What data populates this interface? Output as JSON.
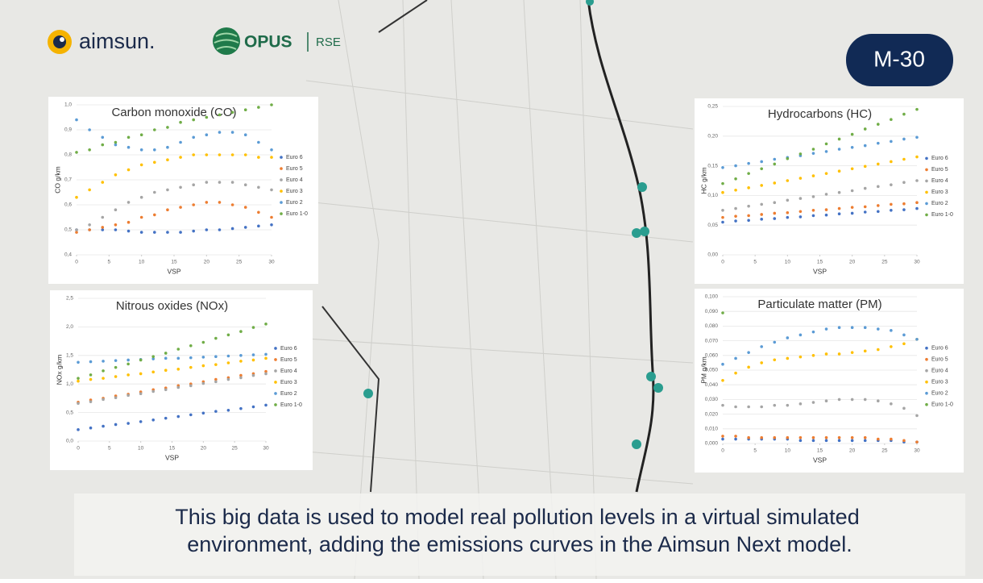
{
  "logos": {
    "aimsun": "aimsun.",
    "opus": "OPUS",
    "rse": "RSE"
  },
  "badge": "M-30",
  "caption": [
    "This big data is used to model real pollution levels in a virtual simulated",
    "environment, adding the emissions curves in the Aimsun Next model."
  ],
  "chart_data": [
    {
      "type": "scatter",
      "title": "Carbon monoxide (CO)",
      "xlabel": "VSP",
      "ylabel": "CO g/km",
      "legend": "right",
      "x": [
        0,
        2,
        4,
        6,
        8,
        10,
        12,
        14,
        16,
        18,
        20,
        22,
        24,
        26,
        28,
        30
      ],
      "xlim": [
        0,
        30
      ],
      "xticks": [
        0,
        5,
        10,
        15,
        20,
        25,
        30
      ],
      "ylim": [
        0.4,
        1.0
      ],
      "yticks": [
        {
          "value": 0.4,
          "label": "0,4"
        },
        {
          "value": 0.5,
          "label": "0,5"
        },
        {
          "value": 0.6,
          "label": "0,6"
        },
        {
          "value": 0.7,
          "label": "0,7"
        },
        {
          "value": 0.8,
          "label": "0,8"
        },
        {
          "value": 0.9,
          "label": "0,9"
        },
        {
          "value": 1.0,
          "label": "1,0"
        }
      ],
      "series": [
        {
          "name": "Euro 6",
          "color": "#4472c4",
          "values": [
            0.5,
            0.5,
            0.5,
            0.5,
            0.495,
            0.49,
            0.49,
            0.49,
            0.49,
            0.495,
            0.5,
            0.5,
            0.505,
            0.51,
            0.515,
            0.52
          ]
        },
        {
          "name": "Euro 5",
          "color": "#ed7d31",
          "values": [
            0.49,
            0.5,
            0.51,
            0.52,
            0.53,
            0.55,
            0.56,
            0.58,
            0.59,
            0.6,
            0.61,
            0.61,
            0.6,
            0.59,
            0.57,
            0.55
          ]
        },
        {
          "name": "Euro 4",
          "color": "#a5a5a5",
          "values": [
            0.5,
            0.52,
            0.55,
            0.58,
            0.61,
            0.63,
            0.65,
            0.66,
            0.67,
            0.68,
            0.69,
            0.69,
            0.69,
            0.68,
            0.67,
            0.66
          ]
        },
        {
          "name": "Euro 3",
          "color": "#ffc000",
          "values": [
            0.63,
            0.66,
            0.69,
            0.72,
            0.74,
            0.76,
            0.77,
            0.78,
            0.79,
            0.8,
            0.8,
            0.8,
            0.8,
            0.8,
            0.79,
            0.79
          ]
        },
        {
          "name": "Euro 2",
          "color": "#5b9bd5",
          "values": [
            0.94,
            0.9,
            0.87,
            0.84,
            0.83,
            0.82,
            0.82,
            0.83,
            0.85,
            0.87,
            0.88,
            0.89,
            0.89,
            0.88,
            0.85,
            0.82
          ]
        },
        {
          "name": "Euro 1-0",
          "color": "#70ad47",
          "values": [
            0.81,
            0.82,
            0.84,
            0.85,
            0.87,
            0.88,
            0.9,
            0.91,
            0.93,
            0.94,
            0.95,
            0.96,
            0.97,
            0.98,
            0.99,
            1.0
          ]
        }
      ]
    },
    {
      "type": "scatter",
      "title": "Hydrocarbons (HC)",
      "xlabel": "VSP",
      "ylabel": "HC g/km",
      "legend": "right",
      "x": [
        0,
        2,
        4,
        6,
        8,
        10,
        12,
        14,
        16,
        18,
        20,
        22,
        24,
        26,
        28,
        30
      ],
      "xlim": [
        0,
        30
      ],
      "xticks": [
        0,
        5,
        10,
        15,
        20,
        25,
        30
      ],
      "ylim": [
        0,
        0.25
      ],
      "yticks": [
        {
          "value": 0,
          "label": "0,00"
        },
        {
          "value": 0.05,
          "label": "0,05"
        },
        {
          "value": 0.1,
          "label": "0,10"
        },
        {
          "value": 0.15,
          "label": "0,15"
        },
        {
          "value": 0.2,
          "label": "0,20"
        },
        {
          "value": 0.25,
          "label": "0,25"
        }
      ],
      "series": [
        {
          "name": "Euro 6",
          "color": "#4472c4",
          "values": [
            0.055,
            0.057,
            0.058,
            0.06,
            0.061,
            0.063,
            0.064,
            0.066,
            0.067,
            0.069,
            0.07,
            0.072,
            0.073,
            0.075,
            0.076,
            0.078
          ]
        },
        {
          "name": "Euro 5",
          "color": "#ed7d31",
          "values": [
            0.063,
            0.065,
            0.066,
            0.068,
            0.07,
            0.071,
            0.073,
            0.075,
            0.076,
            0.078,
            0.08,
            0.081,
            0.083,
            0.085,
            0.086,
            0.088
          ]
        },
        {
          "name": "Euro 4",
          "color": "#a5a5a5",
          "values": [
            0.075,
            0.078,
            0.082,
            0.085,
            0.088,
            0.092,
            0.095,
            0.098,
            0.102,
            0.105,
            0.108,
            0.112,
            0.115,
            0.118,
            0.122,
            0.125
          ]
        },
        {
          "name": "Euro 3",
          "color": "#ffc000",
          "values": [
            0.105,
            0.109,
            0.113,
            0.117,
            0.121,
            0.125,
            0.129,
            0.133,
            0.137,
            0.141,
            0.145,
            0.149,
            0.153,
            0.157,
            0.161,
            0.165
          ]
        },
        {
          "name": "Euro 2",
          "color": "#5b9bd5",
          "values": [
            0.147,
            0.15,
            0.154,
            0.157,
            0.161,
            0.164,
            0.167,
            0.171,
            0.174,
            0.178,
            0.181,
            0.184,
            0.188,
            0.191,
            0.195,
            0.198
          ]
        },
        {
          "name": "Euro 1-0",
          "color": "#70ad47",
          "values": [
            0.12,
            0.128,
            0.137,
            0.145,
            0.153,
            0.162,
            0.17,
            0.178,
            0.187,
            0.195,
            0.203,
            0.212,
            0.22,
            0.228,
            0.237,
            0.245
          ]
        }
      ]
    },
    {
      "type": "scatter",
      "title": "Nitrous oxides (NOx)",
      "xlabel": "VSP",
      "ylabel": "NOx g/km",
      "legend": "right",
      "x": [
        0,
        2,
        4,
        6,
        8,
        10,
        12,
        14,
        16,
        18,
        20,
        22,
        24,
        26,
        28,
        30
      ],
      "xlim": [
        0,
        30
      ],
      "xticks": [
        0,
        5,
        10,
        15,
        20,
        25,
        30
      ],
      "ylim": [
        0,
        2.5
      ],
      "yticks": [
        {
          "value": 0,
          "label": "0,0"
        },
        {
          "value": 0.5,
          "label": "0,5"
        },
        {
          "value": 1.0,
          "label": "1,0"
        },
        {
          "value": 1.5,
          "label": "1,5"
        },
        {
          "value": 2.0,
          "label": "2,0"
        },
        {
          "value": 2.5,
          "label": "2,5"
        }
      ],
      "series": [
        {
          "name": "Euro 6",
          "color": "#4472c4",
          "values": [
            0.2,
            0.23,
            0.26,
            0.29,
            0.31,
            0.34,
            0.37,
            0.4,
            0.43,
            0.46,
            0.49,
            0.52,
            0.54,
            0.57,
            0.6,
            0.63
          ]
        },
        {
          "name": "Euro 5",
          "color": "#ed7d31",
          "values": [
            0.68,
            0.72,
            0.75,
            0.79,
            0.82,
            0.86,
            0.9,
            0.93,
            0.97,
            1.0,
            1.04,
            1.08,
            1.11,
            1.15,
            1.18,
            1.22
          ]
        },
        {
          "name": "Euro 4",
          "color": "#a5a5a5",
          "values": [
            0.66,
            0.69,
            0.73,
            0.76,
            0.8,
            0.83,
            0.87,
            0.9,
            0.94,
            0.97,
            1.01,
            1.04,
            1.08,
            1.11,
            1.15,
            1.18
          ]
        },
        {
          "name": "Euro 3",
          "color": "#ffc000",
          "values": [
            1.05,
            1.08,
            1.1,
            1.13,
            1.16,
            1.18,
            1.21,
            1.24,
            1.26,
            1.29,
            1.32,
            1.34,
            1.37,
            1.4,
            1.42,
            1.45
          ]
        },
        {
          "name": "Euro 2",
          "color": "#5b9bd5",
          "values": [
            1.38,
            1.39,
            1.4,
            1.41,
            1.42,
            1.43,
            1.44,
            1.45,
            1.45,
            1.46,
            1.47,
            1.48,
            1.49,
            1.5,
            1.51,
            1.52
          ]
        },
        {
          "name": "Euro 1-0",
          "color": "#70ad47",
          "values": [
            1.1,
            1.16,
            1.23,
            1.29,
            1.35,
            1.42,
            1.48,
            1.54,
            1.61,
            1.67,
            1.73,
            1.8,
            1.86,
            1.92,
            1.99,
            2.05
          ]
        }
      ]
    },
    {
      "type": "scatter",
      "title": "Particulate matter (PM)",
      "xlabel": "VSP",
      "ylabel": "PM g/km",
      "legend": "right",
      "x": [
        0,
        2,
        4,
        6,
        8,
        10,
        12,
        14,
        16,
        18,
        20,
        22,
        24,
        26,
        28,
        30
      ],
      "xlim": [
        0,
        30
      ],
      "xticks": [
        0,
        5,
        10,
        15,
        20,
        25,
        30
      ],
      "ylim": [
        0,
        0.1
      ],
      "yticks": [
        {
          "value": 0,
          "label": "0,000"
        },
        {
          "value": 0.01,
          "label": "0,010"
        },
        {
          "value": 0.02,
          "label": "0,020"
        },
        {
          "value": 0.03,
          "label": "0,030"
        },
        {
          "value": 0.04,
          "label": "0,040"
        },
        {
          "value": 0.05,
          "label": "0,050"
        },
        {
          "value": 0.06,
          "label": "0,060"
        },
        {
          "value": 0.07,
          "label": "0,070"
        },
        {
          "value": 0.08,
          "label": "0,080"
        },
        {
          "value": 0.09,
          "label": "0,090"
        },
        {
          "value": 0.1,
          "label": "0,100"
        }
      ],
      "series": [
        {
          "name": "Euro 6",
          "color": "#4472c4",
          "values": [
            0.003,
            0.003,
            0.003,
            0.003,
            0.003,
            0.003,
            0.002,
            0.002,
            0.002,
            0.002,
            0.002,
            0.002,
            0.002,
            0.002,
            0.001,
            0.001
          ]
        },
        {
          "name": "Euro 5",
          "color": "#ed7d31",
          "values": [
            0.005,
            0.005,
            0.004,
            0.004,
            0.004,
            0.004,
            0.004,
            0.004,
            0.004,
            0.004,
            0.004,
            0.004,
            0.003,
            0.003,
            0.002,
            0.001
          ]
        },
        {
          "name": "Euro 4",
          "color": "#a5a5a5",
          "values": [
            0.026,
            0.025,
            0.025,
            0.025,
            0.026,
            0.026,
            0.027,
            0.028,
            0.029,
            0.03,
            0.03,
            0.03,
            0.029,
            0.027,
            0.024,
            0.019
          ]
        },
        {
          "name": "Euro 3",
          "color": "#ffc000",
          "values": [
            0.043,
            0.048,
            0.052,
            0.055,
            0.057,
            0.058,
            0.059,
            0.06,
            0.061,
            0.061,
            0.062,
            0.063,
            0.064,
            0.066,
            0.068,
            0.071
          ]
        },
        {
          "name": "Euro 2",
          "color": "#5b9bd5",
          "values": [
            0.054,
            0.058,
            0.062,
            0.066,
            0.069,
            0.072,
            0.074,
            0.076,
            0.078,
            0.079,
            0.079,
            0.079,
            0.078,
            0.077,
            0.074,
            0.071
          ]
        },
        {
          "name": "Euro 1-0",
          "color": "#70ad47",
          "values": [
            0.089,
            null,
            null,
            null,
            null,
            null,
            null,
            null,
            null,
            null,
            null,
            null,
            null,
            null,
            null,
            null
          ]
        }
      ]
    }
  ]
}
